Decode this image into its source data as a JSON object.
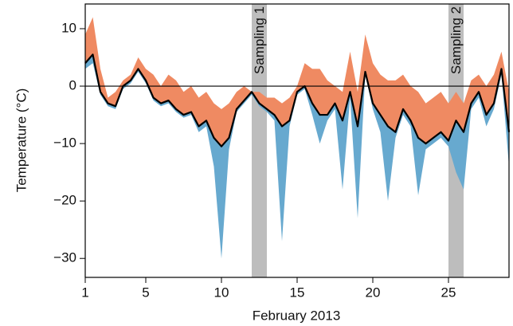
{
  "chart_data": {
    "type": "line",
    "x_label": "February 2013",
    "y_label": "Temperature (°C)",
    "xlim": [
      1,
      29
    ],
    "ylim": [
      -33.3,
      14.3
    ],
    "xticks": [
      1,
      5,
      10,
      15,
      20,
      25
    ],
    "yticks": [
      {
        "value": -30,
        "label": "−30"
      },
      {
        "value": -20,
        "label": "−20"
      },
      {
        "value": -10,
        "label": "−10"
      },
      0,
      10
    ],
    "hline": 0,
    "annotations": [
      {
        "text": "Sampling 1",
        "xrange": [
          12,
          13
        ],
        "color": "#bdbdbd"
      },
      {
        "text": "Sampling 2",
        "xrange": [
          25,
          26
        ],
        "color": "#bdbdbd"
      }
    ],
    "x": [
      1,
      1.5,
      2,
      2.5,
      3,
      3.5,
      4,
      4.5,
      5,
      5.5,
      6,
      6.5,
      7,
      7.5,
      8,
      8.5,
      9,
      9.5,
      10,
      10.5,
      11,
      11.5,
      12,
      12.5,
      13,
      13.5,
      14,
      14.5,
      15,
      15.5,
      16,
      16.5,
      17,
      17.5,
      18,
      18.5,
      19,
      19.5,
      20,
      20.5,
      21,
      21.5,
      22,
      22.5,
      23,
      23.5,
      24,
      24.5,
      25,
      25.5,
      26,
      26.5,
      27,
      27.5,
      28,
      28.5,
      29
    ],
    "series": [
      {
        "color": "#ef8a62",
        "band_to": 2,
        "values": [
          9,
          12,
          3,
          -2,
          -1,
          1,
          2,
          5,
          3,
          2,
          0,
          2,
          1,
          -1,
          0,
          -2,
          -1,
          -3,
          -4,
          -3,
          -1,
          0,
          -1,
          -1,
          -2,
          -2,
          -3,
          -2,
          0,
          4,
          3,
          3,
          1,
          0,
          -1,
          6,
          -1,
          9,
          4,
          2,
          1,
          1,
          2,
          0,
          -1,
          -3,
          -2,
          -1,
          -3,
          -1,
          -3,
          1,
          2,
          0,
          2,
          6,
          -1
        ]
      },
      {
        "color": "#67a9cf",
        "band_to": 2,
        "values": [
          3,
          4,
          -1.5,
          -3.5,
          -4,
          -0.5,
          0.5,
          2.5,
          0.5,
          -2.5,
          -3.5,
          -3,
          -4.5,
          -5.5,
          -5,
          -8,
          -7,
          -14,
          -30,
          -11,
          -4.5,
          -3,
          -1.5,
          -3.5,
          -4.5,
          -6,
          -27,
          -7,
          -1.5,
          -0.5,
          -5,
          -10,
          -6,
          -4,
          -18,
          -2,
          -23,
          2,
          -4,
          -8,
          -20,
          -9,
          -5,
          -7,
          -19,
          -11,
          -10,
          -9,
          -10.5,
          -15,
          -18,
          -4,
          -2,
          -7,
          -4,
          2,
          -14
        ]
      },
      {
        "color": "#000000",
        "values": [
          4,
          5.5,
          -1,
          -3,
          -3.5,
          0,
          1,
          3,
          1,
          -2,
          -3,
          -2.5,
          -4,
          -5,
          -4.5,
          -7,
          -6,
          -9,
          -10.5,
          -9,
          -4,
          -2.5,
          -1,
          -3,
          -4,
          -5,
          -7,
          -6,
          -1,
          0,
          -3,
          -5,
          -5,
          -3,
          -6,
          -1,
          -7,
          2.5,
          -3,
          -5,
          -7,
          -8,
          -4,
          -6,
          -9,
          -10,
          -9,
          -8,
          -9.5,
          -6,
          -8,
          -3,
          -1,
          -5,
          -3,
          3,
          -8
        ]
      }
    ]
  }
}
